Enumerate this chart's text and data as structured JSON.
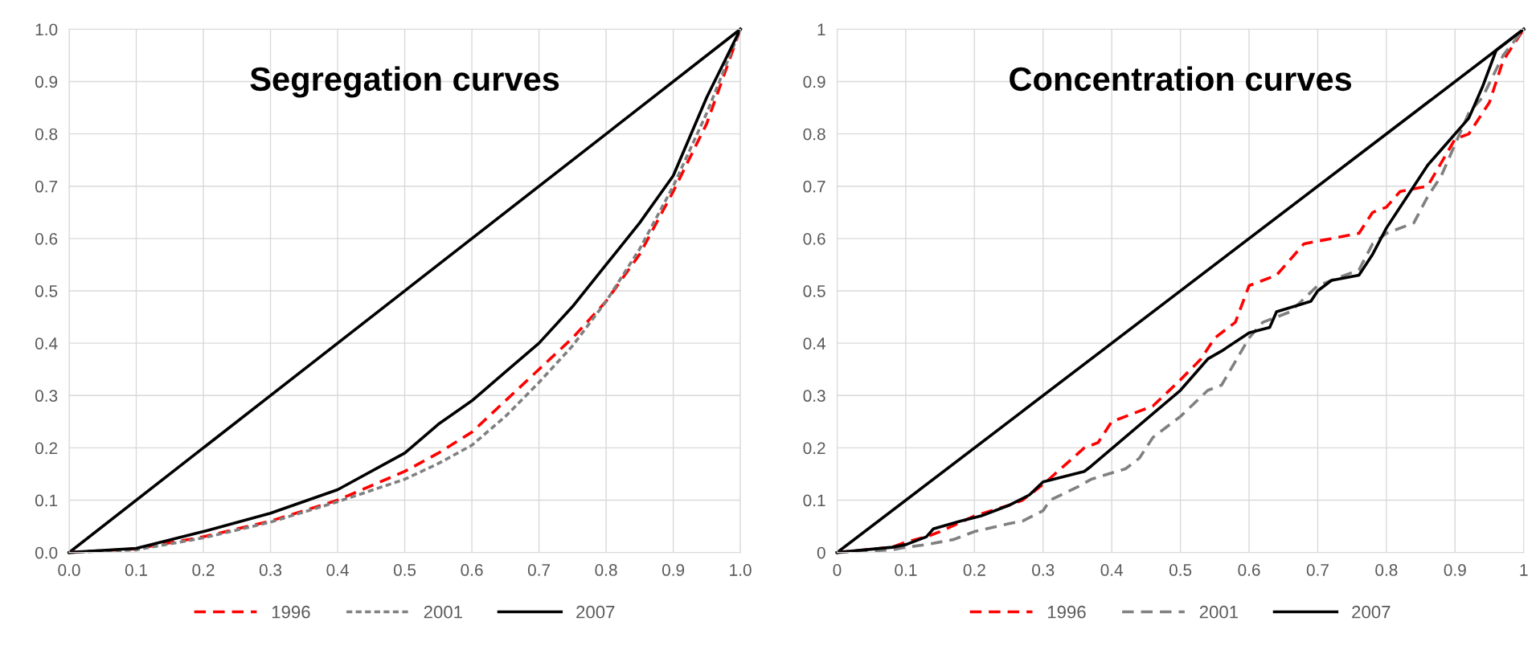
{
  "chart_data": [
    {
      "type": "line",
      "title": "Segregation curves",
      "xlim": [
        0,
        1
      ],
      "ylim": [
        0,
        1
      ],
      "xticks": [
        {
          "value": 0,
          "label": "0.0"
        },
        0.1,
        0.2,
        0.3,
        0.4,
        0.5,
        0.6,
        0.7,
        0.8,
        0.9,
        {
          "value": 1,
          "label": "1.0"
        }
      ],
      "yticks": [
        {
          "value": 0,
          "label": "0.0"
        },
        0.1,
        0.2,
        0.3,
        0.4,
        0.5,
        0.6,
        0.7,
        0.8,
        0.9,
        {
          "value": 1,
          "label": "1.0"
        }
      ],
      "grid": true,
      "legend": "bottom",
      "marker": "none",
      "series": [
        {
          "color": "#000000",
          "line_style": "solid",
          "x": [
            0,
            1
          ],
          "values": [
            0,
            1
          ]
        },
        {
          "name": "1996",
          "color": "#ff0000",
          "line_style": "dashed",
          "x": [
            0,
            0.1,
            0.2,
            0.3,
            0.4,
            0.5,
            0.55,
            0.6,
            0.65,
            0.7,
            0.75,
            0.8,
            0.85,
            0.9,
            0.95,
            1.0
          ],
          "values": [
            0,
            0.007,
            0.03,
            0.06,
            0.1,
            0.155,
            0.19,
            0.23,
            0.29,
            0.35,
            0.41,
            0.48,
            0.57,
            0.69,
            0.82,
            1.0
          ]
        },
        {
          "name": "2001",
          "color": "#808080",
          "line_style": "dotted",
          "x": [
            0,
            0.1,
            0.2,
            0.3,
            0.4,
            0.5,
            0.55,
            0.6,
            0.65,
            0.7,
            0.75,
            0.8,
            0.85,
            0.9,
            0.95,
            1.0
          ],
          "values": [
            0,
            0.005,
            0.028,
            0.058,
            0.097,
            0.14,
            0.17,
            0.205,
            0.26,
            0.325,
            0.395,
            0.48,
            0.58,
            0.7,
            0.84,
            1.0
          ]
        },
        {
          "name": "2007",
          "color": "#000000",
          "line_style": "solid",
          "x": [
            0,
            0.1,
            0.2,
            0.3,
            0.4,
            0.5,
            0.55,
            0.6,
            0.65,
            0.7,
            0.75,
            0.8,
            0.85,
            0.9,
            0.95,
            1.0
          ],
          "values": [
            0,
            0.008,
            0.04,
            0.075,
            0.12,
            0.19,
            0.245,
            0.29,
            0.345,
            0.4,
            0.47,
            0.55,
            0.63,
            0.72,
            0.87,
            1.0
          ]
        }
      ]
    },
    {
      "type": "line",
      "title": "Concentration curves",
      "xlim": [
        0,
        1
      ],
      "ylim": [
        0,
        1
      ],
      "xticks": [
        0,
        0.1,
        0.2,
        0.3,
        0.4,
        0.5,
        0.6,
        0.7,
        0.8,
        0.9,
        1
      ],
      "yticks": [
        0,
        0.1,
        0.2,
        0.3,
        0.4,
        0.5,
        0.6,
        0.7,
        0.8,
        0.9,
        1
      ],
      "grid": true,
      "legend": "bottom",
      "marker": "none",
      "series": [
        {
          "color": "#000000",
          "line_style": "solid",
          "x": [
            0,
            1
          ],
          "values": [
            0,
            1
          ]
        },
        {
          "name": "1996",
          "color": "#ff0000",
          "line_style": "dashed",
          "x": [
            0,
            0.08,
            0.1,
            0.13,
            0.15,
            0.2,
            0.25,
            0.27,
            0.3,
            0.36,
            0.38,
            0.4,
            0.46,
            0.5,
            0.53,
            0.55,
            0.58,
            0.6,
            0.64,
            0.68,
            0.76,
            0.78,
            0.8,
            0.82,
            0.86,
            0.9,
            0.92,
            0.95,
            0.97,
            1
          ],
          "values": [
            0,
            0.01,
            0.02,
            0.03,
            0.04,
            0.07,
            0.09,
            0.1,
            0.13,
            0.2,
            0.21,
            0.25,
            0.28,
            0.33,
            0.37,
            0.41,
            0.44,
            0.51,
            0.53,
            0.59,
            0.61,
            0.65,
            0.66,
            0.69,
            0.7,
            0.79,
            0.8,
            0.86,
            0.94,
            1
          ]
        },
        {
          "name": "2001",
          "color": "#808080",
          "line_style": "dashed",
          "x": [
            0,
            0.08,
            0.1,
            0.13,
            0.17,
            0.2,
            0.25,
            0.27,
            0.3,
            0.31,
            0.35,
            0.37,
            0.42,
            0.44,
            0.46,
            0.5,
            0.54,
            0.56,
            0.6,
            0.62,
            0.66,
            0.7,
            0.72,
            0.76,
            0.78,
            0.8,
            0.84,
            0.86,
            0.88,
            0.92,
            0.94,
            0.97,
            1
          ],
          "values": [
            0,
            0.005,
            0.01,
            0.015,
            0.025,
            0.04,
            0.055,
            0.06,
            0.08,
            0.1,
            0.125,
            0.14,
            0.16,
            0.18,
            0.22,
            0.26,
            0.31,
            0.32,
            0.41,
            0.44,
            0.46,
            0.51,
            0.52,
            0.54,
            0.59,
            0.61,
            0.63,
            0.68,
            0.72,
            0.84,
            0.87,
            0.95,
            1
          ]
        },
        {
          "name": "2007",
          "color": "#000000",
          "line_style": "solid",
          "x": [
            0,
            0.08,
            0.1,
            0.13,
            0.14,
            0.18,
            0.21,
            0.25,
            0.28,
            0.3,
            0.36,
            0.37,
            0.5,
            0.52,
            0.54,
            0.56,
            0.6,
            0.63,
            0.64,
            0.69,
            0.7,
            0.72,
            0.76,
            0.78,
            0.8,
            0.82,
            0.86,
            0.88,
            0.92,
            0.94,
            0.96,
            0.98,
            1
          ],
          "values": [
            0,
            0.01,
            0.015,
            0.03,
            0.045,
            0.06,
            0.07,
            0.09,
            0.11,
            0.135,
            0.155,
            0.165,
            0.31,
            0.34,
            0.37,
            0.385,
            0.42,
            0.43,
            0.46,
            0.48,
            0.5,
            0.52,
            0.53,
            0.57,
            0.62,
            0.66,
            0.74,
            0.77,
            0.83,
            0.89,
            0.96,
            0.98,
            1
          ]
        }
      ]
    }
  ]
}
